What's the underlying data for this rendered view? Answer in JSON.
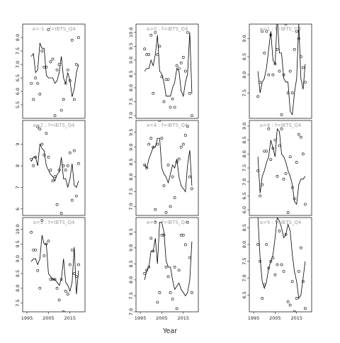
{
  "figure": {
    "xlabel": "Year"
  },
  "chart_data": [
    {
      "type": "line",
      "title": "a=-1 : f=IBTS_Q4",
      "x_ticks": [],
      "y_ticks": [
        5.5,
        6.0,
        6.5,
        7.0,
        7.5,
        8.0
      ],
      "xlim": [
        1993,
        2022
      ],
      "ylim": [
        5.0,
        8.5
      ],
      "line": {
        "x": [
          1997,
          1998,
          1999,
          2000,
          2001,
          2002,
          2003,
          2004,
          2005,
          2006,
          2007,
          2008,
          2009,
          2010,
          2011,
          2012,
          2013,
          2014,
          2015,
          2016,
          2017,
          2018,
          2019
        ],
        "y": [
          7.3,
          7.4,
          6.7,
          6.8,
          7.8,
          7.6,
          7.6,
          6.6,
          6.5,
          6.5,
          6.5,
          6.3,
          6.4,
          6.7,
          7.3,
          6.5,
          6.3,
          6.7,
          6.4,
          5.8,
          6.1,
          6.7,
          7.0
        ]
      },
      "points": {
        "x": [
          1997,
          1998,
          1999,
          2000,
          2001,
          2002,
          2003,
          2004,
          2005,
          2006,
          2007,
          2008,
          2009,
          2010,
          2011,
          2012,
          2013,
          2014,
          2015,
          2016,
          2017,
          2018,
          2019
        ],
        "y": [
          6.3,
          5.7,
          6.5,
          6.3,
          5.9,
          7.5,
          6.9,
          6.9,
          8.3,
          7.1,
          7.2,
          5.1,
          6.8,
          7.0,
          5.3,
          5.7,
          6.3,
          6.8,
          6.4,
          7.9,
          5.7,
          7.0,
          8.0
        ]
      }
    },
    {
      "type": "line",
      "title": "a=0 : f=IBTS_Q4",
      "x_ticks": [],
      "y_ticks": [
        7.0,
        7.5,
        8.0,
        8.5,
        9.0,
        9.5,
        10.0
      ],
      "xlim": [
        1993,
        2022
      ],
      "ylim": [
        6.9,
        10.3
      ],
      "line": {
        "x": [
          1997,
          1998,
          1999,
          2000,
          2001,
          2002,
          2003,
          2004,
          2005,
          2006,
          2007,
          2008,
          2009,
          2010,
          2011,
          2012,
          2013,
          2014,
          2015,
          2016,
          2017,
          2018,
          2019
        ],
        "y": [
          8.6,
          8.7,
          8.7,
          9.0,
          8.8,
          9.2,
          9.9,
          8.6,
          8.5,
          8.2,
          7.7,
          7.7,
          7.7,
          8.0,
          8.2,
          8.7,
          8.6,
          7.9,
          7.7,
          8.2,
          8.5,
          10.0,
          7.8
        ]
      },
      "points": {
        "x": [
          1997,
          1998,
          1999,
          2000,
          2001,
          2002,
          2003,
          2004,
          2005,
          2006,
          2007,
          2008,
          2009,
          2010,
          2011,
          2012,
          2013,
          2014,
          2015,
          2016,
          2017,
          2018,
          2019
        ],
        "y": [
          9.4,
          9.2,
          9.2,
          9.9,
          7.8,
          10.0,
          9.2,
          9.5,
          8.4,
          7.5,
          8.3,
          8.3,
          7.3,
          7.6,
          7.3,
          8.8,
          8.7,
          8.9,
          9.1,
          8.6,
          10.0,
          7.8,
          7.0
        ]
      }
    },
    {
      "type": "line",
      "title": "a=1 : f=IBTS_Q4",
      "x_ticks": [],
      "y_ticks": [
        7.5,
        8.0,
        8.5,
        9.0
      ],
      "xlim": [
        1993,
        2022
      ],
      "ylim": [
        6.8,
        9.4
      ],
      "line": {
        "x": [
          1997,
          1998,
          1999,
          2000,
          2001,
          2002,
          2003,
          2004,
          2005,
          2006,
          2007,
          2008,
          2009,
          2010,
          2011,
          2012,
          2013,
          2014,
          2015,
          2016,
          2017,
          2018,
          2019
        ],
        "y": [
          8.1,
          7.5,
          7.8,
          7.9,
          8.2,
          8.7,
          9.2,
          8.4,
          8.3,
          9.6,
          8.6,
          8.6,
          7.9,
          7.8,
          7.8,
          7.0,
          6.9,
          7.5,
          7.9,
          9.4,
          7.9,
          7.6,
          8.3
        ]
      },
      "points": {
        "x": [
          1997,
          1998,
          1999,
          2000,
          2001,
          2002,
          2003,
          2004,
          2005,
          2006,
          2007,
          2008,
          2009,
          2010,
          2011,
          2012,
          2013,
          2014,
          2015,
          2016,
          2017,
          2018,
          2019
        ],
        "y": [
          7.4,
          7.8,
          9.2,
          8.6,
          9.2,
          8.0,
          9.1,
          8.0,
          8.3,
          8.7,
          8.1,
          6.9,
          8.0,
          9.4,
          7.5,
          8.1,
          7.5,
          8.7,
          9.2,
          9.0,
          8.5,
          8.2,
          7.8
        ]
      }
    },
    {
      "type": "line",
      "title": "a=2 : f=IBTS_Q4",
      "x_ticks": [],
      "y_ticks": [
        6,
        7,
        8,
        9
      ],
      "xlim": [
        1993,
        2022
      ],
      "ylim": [
        5.7,
        10.1
      ],
      "line": {
        "x": [
          1997,
          1998,
          1999,
          2000,
          2001,
          2002,
          2003,
          2004,
          2005,
          2006,
          2007,
          2008,
          2009,
          2010,
          2011,
          2012,
          2013,
          2014,
          2015,
          2016,
          2017,
          2018,
          2019
        ],
        "y": [
          8.2,
          8.4,
          8.4,
          8.0,
          9.0,
          8.8,
          8.7,
          8.0,
          7.8,
          7.6,
          7.5,
          7.3,
          7.6,
          7.7,
          8.4,
          7.4,
          7.4,
          7.0,
          7.4,
          8.1,
          7.1,
          7.0,
          7.3
        ]
      },
      "points": {
        "x": [
          1997,
          1998,
          1999,
          2000,
          2001,
          2002,
          2003,
          2004,
          2005,
          2006,
          2007,
          2008,
          2009,
          2010,
          2011,
          2012,
          2013,
          2014,
          2015,
          2016,
          2017,
          2018,
          2019
        ],
        "y": [
          8.3,
          8.0,
          8.4,
          9.8,
          9.7,
          9.0,
          8.5,
          9.5,
          8.4,
          7.8,
          7.3,
          7.5,
          6.2,
          7.8,
          5.8,
          8.0,
          7.8,
          8.0,
          8.6,
          6.4,
          8.7,
          6.6,
          8.1
        ]
      }
    },
    {
      "type": "line",
      "title": "a=4 : f=IBTS_Q4",
      "x_ticks": [],
      "y_ticks": [
        7.0,
        7.5,
        8.0,
        8.5,
        9.0,
        9.5
      ],
      "xlim": [
        1993,
        2022
      ],
      "ylim": [
        6.7,
        9.9
      ],
      "line": {
        "x": [
          1997,
          1998,
          1999,
          2000,
          2001,
          2002,
          2003,
          2004,
          2005,
          2006,
          2007,
          2008,
          2009,
          2010,
          2011,
          2012,
          2013,
          2014,
          2015,
          2016,
          2017,
          2018,
          2019
        ],
        "y": [
          8.4,
          8.3,
          8.6,
          8.8,
          9.0,
          9.0,
          9.3,
          9.3,
          8.3,
          8.1,
          8.0,
          7.8,
          8.1,
          8.4,
          8.3,
          8.6,
          8.0,
          7.7,
          7.6,
          7.5,
          8.4,
          8.9,
          7.7
        ]
      },
      "points": {
        "x": [
          1997,
          1998,
          1999,
          2000,
          2001,
          2002,
          2003,
          2004,
          2005,
          2006,
          2007,
          2008,
          2009,
          2010,
          2011,
          2012,
          2013,
          2014,
          2015,
          2016,
          2017,
          2018,
          2019
        ],
        "y": [
          8.4,
          8.3,
          9.1,
          9.3,
          9.0,
          6.9,
          9.1,
          9.9,
          9.3,
          7.7,
          6.8,
          8.4,
          7.0,
          8.0,
          7.3,
          8.5,
          8.6,
          9.0,
          9.1,
          9.4,
          9.7,
          8.0,
          7.6
        ]
      }
    },
    {
      "type": "line",
      "title": "a=8 : f=IBTS_Q4",
      "x_ticks": [],
      "y_ticks": [
        6.0,
        6.5,
        7.0,
        7.5,
        8.0,
        8.5,
        9.0
      ],
      "xlim": [
        1993,
        2022
      ],
      "ylim": [
        5.8,
        9.2
      ],
      "line": {
        "x": [
          1997,
          1998,
          1999,
          2000,
          2001,
          2002,
          2003,
          2004,
          2005,
          2006,
          2007,
          2008,
          2009,
          2010,
          2011,
          2012,
          2013,
          2014,
          2015,
          2016,
          2017,
          2018,
          2019
        ],
        "y": [
          7.9,
          6.6,
          7.2,
          7.4,
          7.7,
          7.9,
          8.5,
          8.2,
          7.9,
          8.9,
          8.8,
          8.0,
          7.9,
          7.7,
          7.4,
          7.2,
          6.9,
          6.3,
          6.2,
          6.9,
          7.1,
          7.1,
          7.2
        ]
      },
      "points": {
        "x": [
          1997,
          1998,
          1999,
          2000,
          2001,
          2002,
          2003,
          2004,
          2005,
          2006,
          2007,
          2008,
          2009,
          2010,
          2011,
          2012,
          2013,
          2014,
          2015,
          2016,
          2017,
          2018,
          2019
        ],
        "y": [
          7.4,
          6.5,
          6.9,
          8.1,
          8.1,
          8.9,
          7.8,
          8.2,
          8.5,
          7.2,
          8.3,
          8.9,
          7.1,
          7.3,
          5.9,
          7.9,
          6.8,
          6.4,
          7.7,
          8.7,
          8.6,
          8.0,
          6.2
        ]
      }
    },
    {
      "type": "line",
      "title": "a=3 : f=IBTS_Q4",
      "x_ticks": [
        "1995",
        "2005",
        "2015"
      ],
      "y_ticks": [
        7.5,
        8.0,
        8.5,
        9.0,
        9.5,
        10.0
      ],
      "xlim": [
        1993,
        2022
      ],
      "ylim": [
        7.2,
        10.4
      ],
      "line": {
        "x": [
          1997,
          1998,
          1999,
          2000,
          2001,
          2002,
          2003,
          2004,
          2005,
          2006,
          2007,
          2008,
          2009,
          2010,
          2011,
          2012,
          2013,
          2014,
          2015,
          2016,
          2017,
          2018,
          2019
        ],
        "y": [
          8.9,
          9.0,
          9.0,
          8.8,
          9.0,
          9.8,
          9.5,
          9.5,
          8.5,
          8.4,
          8.3,
          8.3,
          8.2,
          8.1,
          8.3,
          9.0,
          8.2,
          8.1,
          7.9,
          8.2,
          9.4,
          7.8,
          8.6
        ]
      },
      "points": {
        "x": [
          1997,
          1998,
          1999,
          2000,
          2001,
          2002,
          2003,
          2004,
          2005,
          2006,
          2007,
          2008,
          2009,
          2010,
          2011,
          2012,
          2013,
          2014,
          2015,
          2016,
          2017,
          2018,
          2019
        ],
        "y": [
          9.9,
          9.3,
          9.3,
          8.6,
          8.0,
          10.3,
          9.1,
          9.5,
          9.6,
          8.3,
          8.3,
          8.3,
          8.0,
          7.6,
          8.3,
          7.2,
          7.9,
          7.8,
          8.8,
          9.3,
          8.5,
          8.4,
          8.8
        ]
      }
    },
    {
      "type": "line",
      "title": "a=6 : f=IBTS_Q4",
      "x_ticks": [
        "1995",
        "2005",
        "2015"
      ],
      "y_ticks": [
        7.0,
        7.5,
        8.0,
        8.5,
        9.0,
        9.5
      ],
      "xlim": [
        1993,
        2022
      ],
      "ylim": [
        7.0,
        9.95
      ],
      "line": {
        "x": [
          1997,
          1998,
          1999,
          2000,
          2001,
          2002,
          2003,
          2004,
          2005,
          2006,
          2007,
          2008,
          2009,
          2010,
          2011,
          2012,
          2013,
          2014,
          2015,
          2016,
          2017,
          2018,
          2019
        ],
        "y": [
          8.0,
          8.3,
          8.4,
          8.9,
          8.9,
          9.3,
          8.5,
          9.8,
          9.8,
          9.5,
          8.6,
          8.4,
          8.4,
          8.0,
          7.7,
          7.8,
          7.9,
          7.7,
          7.6,
          7.5,
          7.6,
          8.0,
          9.2
        ]
      },
      "points": {
        "x": [
          1997,
          1998,
          1999,
          2000,
          2001,
          2002,
          2003,
          2004,
          2005,
          2006,
          2007,
          2008,
          2009,
          2010,
          2011,
          2012,
          2013,
          2014,
          2015,
          2016,
          2017,
          2018,
          2019
        ],
        "y": [
          8.2,
          8.3,
          8.4,
          9.3,
          8.9,
          9.8,
          7.3,
          7.6,
          9.4,
          9.4,
          8.4,
          8.1,
          7.6,
          7.4,
          8.4,
          7.1,
          8.3,
          9.4,
          9.4,
          9.1,
          9.8,
          8.7,
          7.6
        ]
      }
    },
    {
      "type": "line",
      "title": "a=9 : f=IBTS_Q4",
      "x_ticks": [
        "1995",
        "2005",
        "2015"
      ],
      "y_ticks": [
        6.5,
        7.0,
        7.5,
        8.0,
        8.5
      ],
      "xlim": [
        1993,
        2022
      ],
      "ylim": [
        6.0,
        8.8
      ],
      "line": {
        "x": [
          1997,
          1998,
          1999,
          2000,
          2001,
          2002,
          2003,
          2004,
          2005,
          2006,
          2007,
          2008,
          2009,
          2010,
          2011,
          2012,
          2013,
          2014,
          2015,
          2016,
          2017,
          2018,
          2019
        ],
        "y": [
          8.8,
          7.6,
          6.9,
          6.7,
          6.9,
          7.3,
          7.5,
          7.7,
          8.2,
          8.8,
          8.7,
          8.5,
          8.2,
          8.3,
          8.6,
          8.4,
          7.7,
          7.2,
          6.9,
          6.4,
          6.5,
          7.0,
          7.5
        ]
      },
      "points": {
        "x": [
          1997,
          1998,
          1999,
          2000,
          2001,
          2002,
          2003,
          2004,
          2005,
          2006,
          2007,
          2008,
          2009,
          2010,
          2011,
          2012,
          2013,
          2014,
          2015,
          2016,
          2017,
          2018,
          2019
        ],
        "y": [
          8.0,
          7.5,
          6.4,
          6.8,
          8.0,
          7.3,
          7.5,
          7.6,
          7.1,
          7.4,
          8.4,
          7.4,
          7.2,
          8.3,
          6.3,
          6.2,
          6.9,
          6.0,
          6.4,
          7.2,
          7.9,
          6.9,
          6.1
        ]
      }
    }
  ]
}
